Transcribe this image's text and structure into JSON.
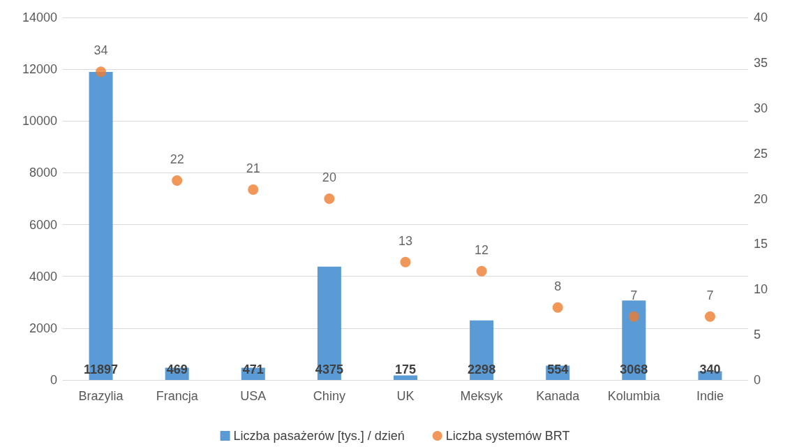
{
  "chart_data": {
    "type": "bar",
    "categories": [
      "Brazylia",
      "Francja",
      "USA",
      "Chiny",
      "UK",
      "Meksyk",
      "Kanada",
      "Kolumbia",
      "Indie"
    ],
    "series": [
      {
        "name": "Liczba pasażerów [tys.] / dzień",
        "color": "#5b9bd5",
        "values": [
          11897,
          469,
          471,
          4375,
          175,
          2298,
          554,
          3068,
          340
        ]
      },
      {
        "name": "Liczba systemów BRT",
        "type": "scatter",
        "axis": "y2",
        "color": "#ed7d31",
        "marker": "circle",
        "values": [
          34,
          22,
          21,
          20,
          13,
          12,
          8,
          7,
          7
        ]
      }
    ],
    "ylim": [
      0,
      14000
    ],
    "yticks": [
      0,
      2000,
      4000,
      6000,
      8000,
      10000,
      12000,
      14000
    ],
    "y2lim": [
      0,
      40
    ],
    "y2ticks": [
      0,
      5,
      10,
      15,
      20,
      25,
      30,
      35,
      40
    ],
    "grid": "y",
    "legend": "bottom",
    "data_labels": true
  }
}
